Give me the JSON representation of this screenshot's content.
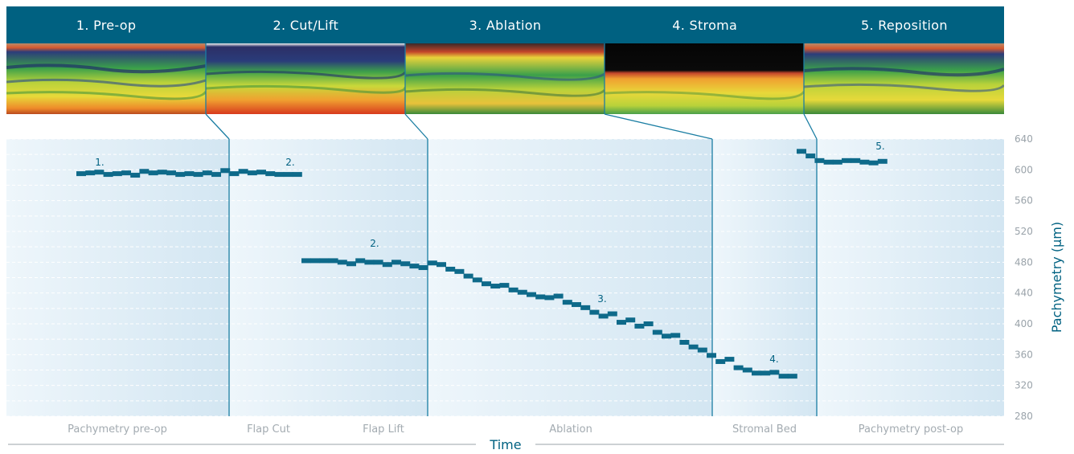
{
  "header": {
    "stages": [
      "1. Pre-op",
      "2. Cut/Lift",
      "3. Ablation",
      "4. Stroma",
      "5. Reposition"
    ]
  },
  "colors": {
    "header_bg": "#006181",
    "marker": "#0e6a8a",
    "connector": "#1b7ea3",
    "panel_light": "#eef6fb",
    "panel_dark": "#d3e6f2"
  },
  "chart_data": {
    "type": "scatter",
    "xlabel": "Time",
    "ylabel": "Pachymetry (µm)",
    "ylim": [
      280,
      640
    ],
    "yticks": [
      640,
      600,
      560,
      520,
      480,
      440,
      400,
      360,
      320,
      280
    ],
    "grid": true,
    "phases": [
      "Pachymetry pre-op",
      "Flap Cut",
      "Flap Lift",
      "Ablation",
      "Stromal Bed",
      "Pachymetry post-op"
    ],
    "annotations": [
      "1.",
      "2.",
      "2.",
      "3.",
      "4.",
      "5."
    ],
    "series": [
      {
        "x": [
          1,
          2,
          3,
          4,
          5,
          6,
          7,
          8,
          9,
          10,
          11,
          12,
          13,
          14,
          15,
          16,
          17,
          18,
          19,
          20,
          21,
          22,
          23,
          24,
          25
        ],
        "y": [
          595,
          596,
          597,
          594,
          595,
          596,
          593,
          598,
          596,
          597,
          596,
          594,
          595,
          594,
          596,
          594,
          599,
          595,
          598,
          596,
          597,
          595,
          594,
          594,
          594
        ]
      },
      {
        "x": [
          26,
          27,
          28,
          29,
          30,
          31,
          32,
          33,
          34,
          35,
          36,
          37,
          38,
          39,
          40,
          41,
          42,
          43,
          44,
          45,
          46,
          47,
          48,
          49,
          50,
          51,
          52,
          53,
          54,
          55,
          56,
          57,
          58,
          59,
          60,
          61,
          62,
          63,
          64,
          65,
          66,
          67,
          68,
          69,
          70,
          71,
          72,
          73,
          74,
          75,
          76,
          77,
          78,
          79,
          80
        ],
        "y": [
          482,
          482,
          482,
          482,
          480,
          478,
          482,
          480,
          480,
          477,
          480,
          478,
          475,
          473,
          479,
          477,
          471,
          468,
          462,
          457,
          452,
          449,
          450,
          444,
          441,
          438,
          435,
          434,
          436,
          428,
          425,
          421,
          415,
          410,
          413,
          402,
          405,
          397,
          400,
          389,
          384,
          385,
          376,
          370,
          366,
          359,
          351,
          354,
          343,
          340,
          336,
          336,
          337,
          332,
          332
        ]
      },
      {
        "x": [
          81,
          82,
          83,
          84,
          85,
          86,
          87,
          88,
          89,
          90
        ],
        "y": [
          624,
          618,
          612,
          610,
          610,
          612,
          612,
          610,
          609,
          611
        ]
      }
    ]
  }
}
